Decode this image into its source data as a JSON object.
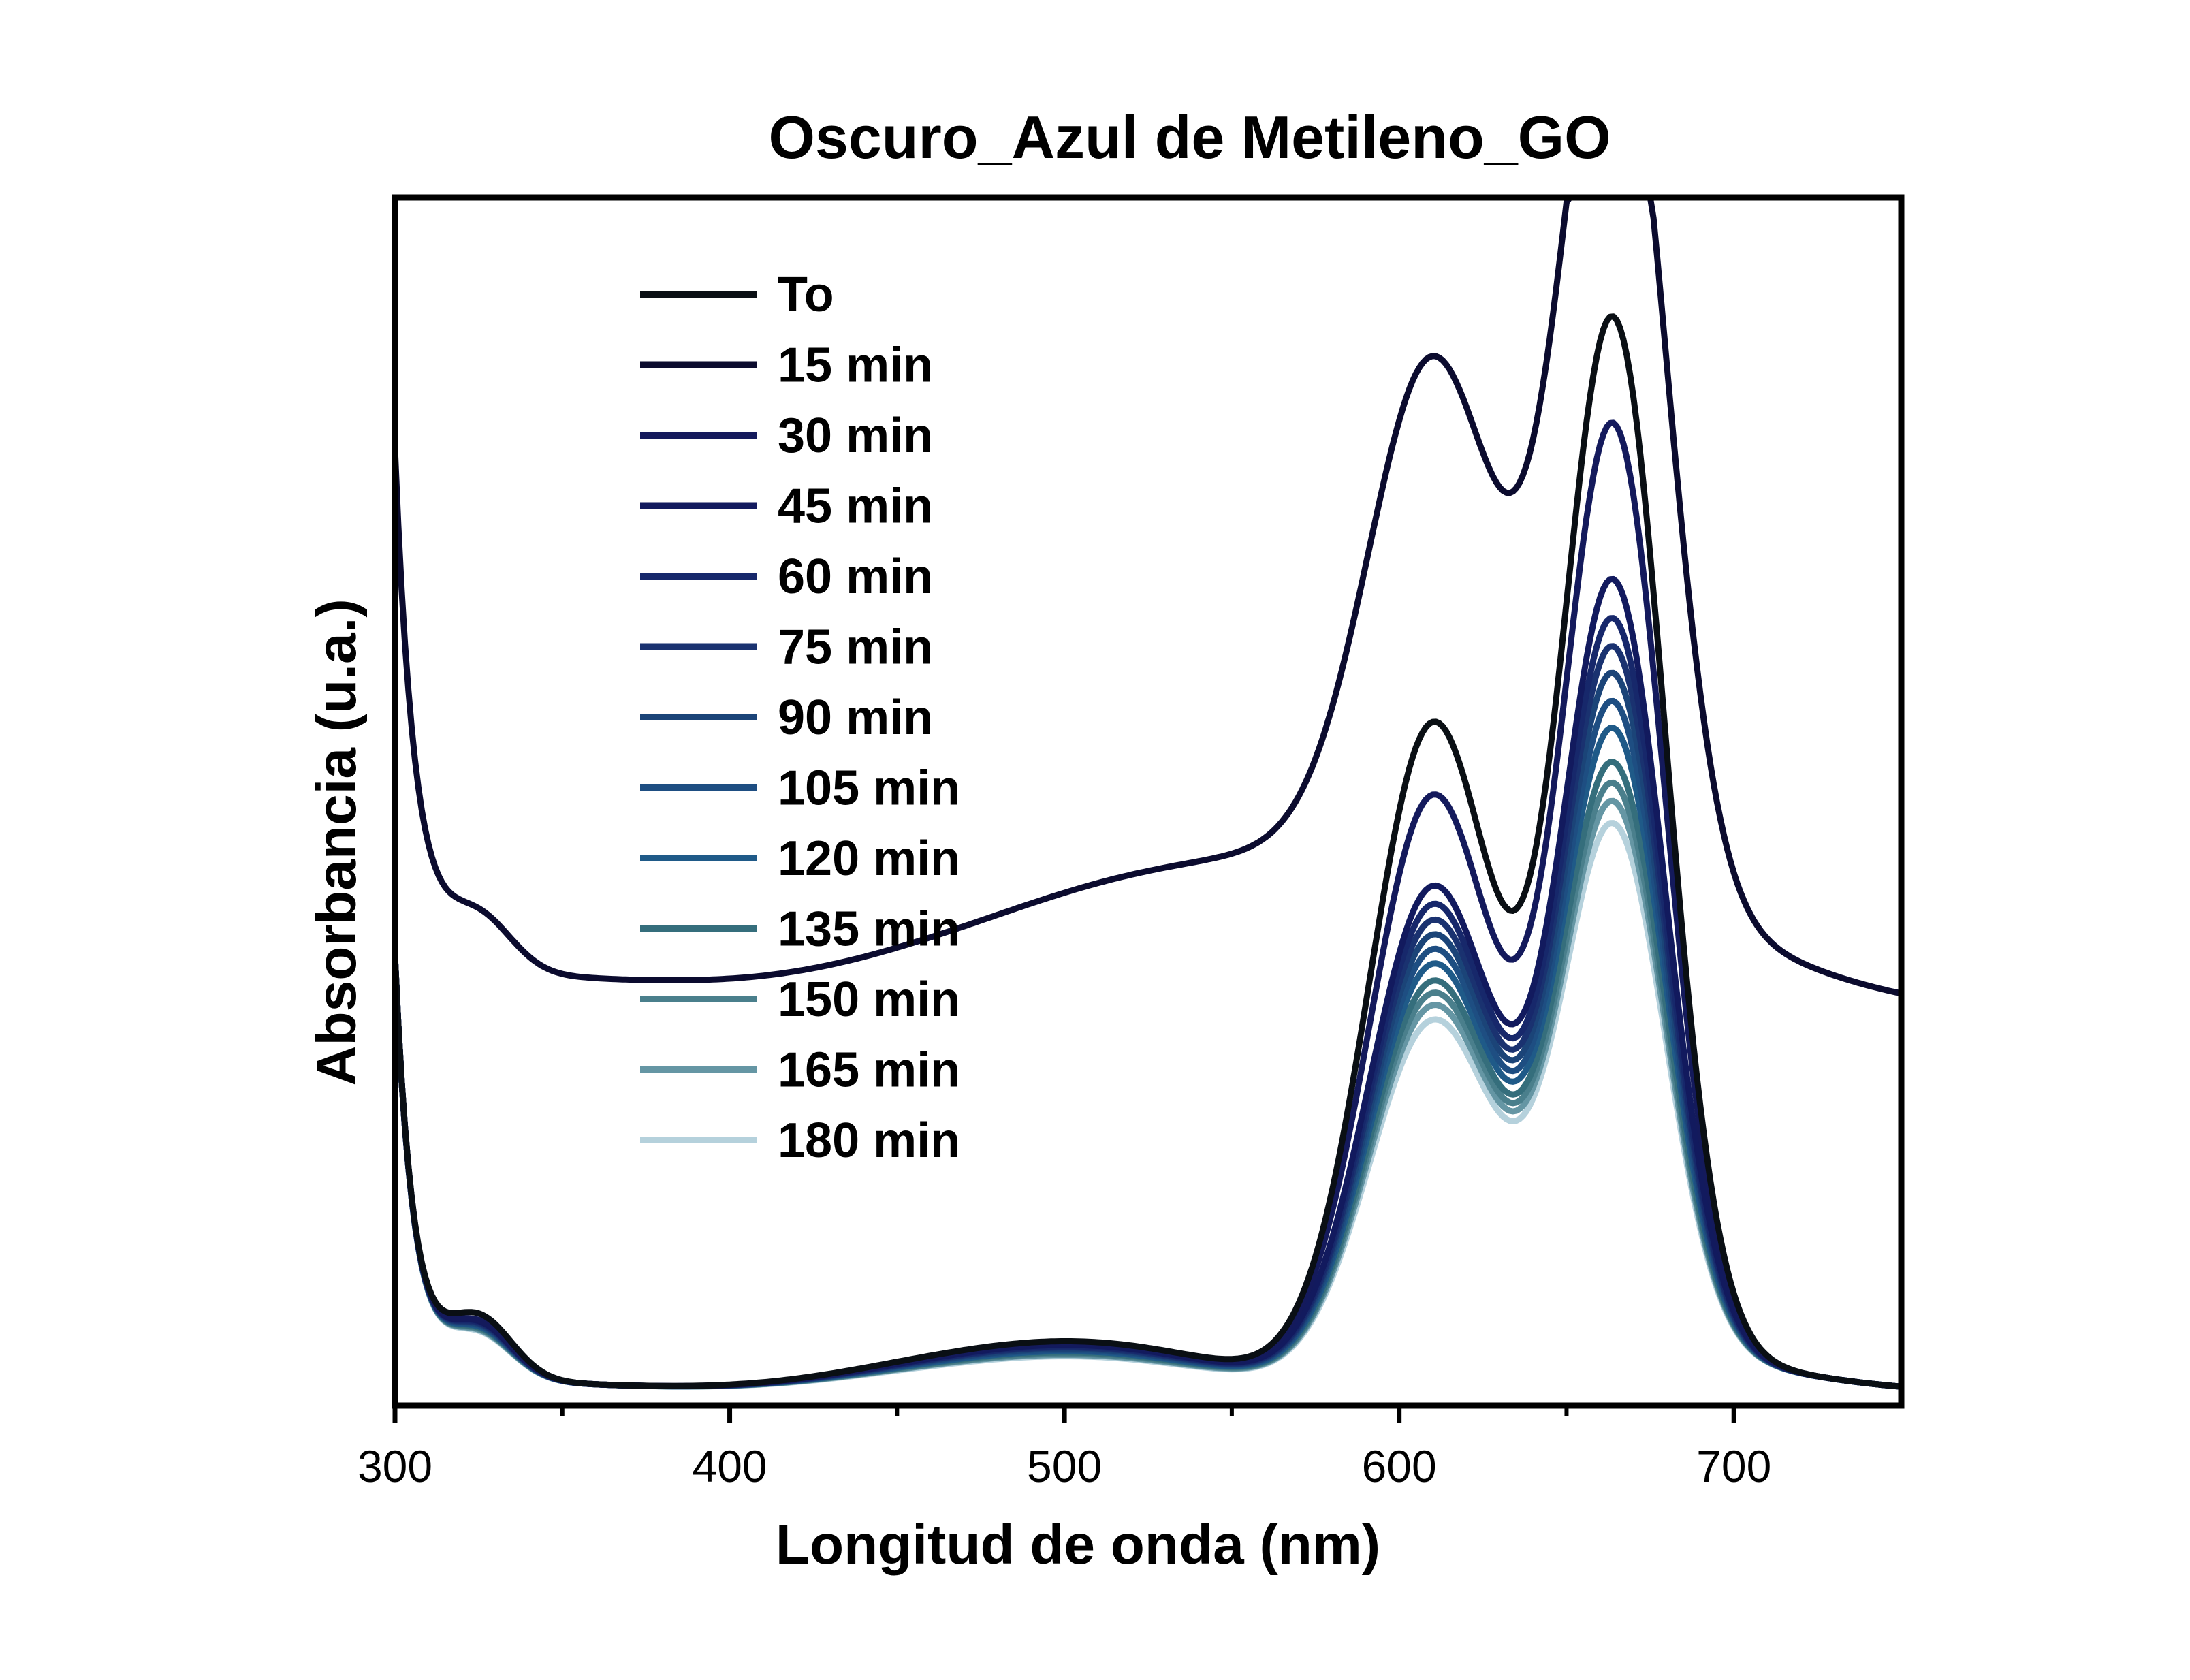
{
  "chart_data": {
    "type": "line",
    "title": "Oscuro_Azul de Metileno_GO",
    "xlabel": "Longitud de onda (nm)",
    "ylabel": "Absorbancia (u.a.)",
    "xlim": [
      300,
      750
    ],
    "ylim": [
      0,
      1
    ],
    "x_ticks": [
      {
        "value": 300,
        "label": "300"
      },
      {
        "value": 400,
        "label": "400"
      },
      {
        "value": 500,
        "label": "500"
      },
      {
        "value": 600,
        "label": "600"
      },
      {
        "value": 700,
        "label": "700"
      }
    ],
    "x_minor_ticks": [
      350,
      450,
      550,
      650
    ],
    "y_tick_labels": false,
    "grid": false,
    "legend_position": "top-left",
    "series": [
      {
        "name": "To",
        "color": "#0a0f14",
        "peak": 0.927,
        "shoulder": 0.535,
        "s330": 0.11,
        "s450": 0.024,
        "s500": 0.041
      },
      {
        "name": "15 min",
        "color": "#0b0b2e",
        "peak": 0.902,
        "shoulder": 0.435,
        "s330": 0.1,
        "s450": 0.023,
        "s500": 0.04,
        "offset": 0.34
      },
      {
        "name": "30 min",
        "color": "#141a5c",
        "peak": 0.84,
        "shoulder": 0.475,
        "s330": 0.098,
        "s450": 0.022,
        "s500": 0.04
      },
      {
        "name": "45 min",
        "color": "#121a5e",
        "peak": 0.712,
        "shoulder": 0.4,
        "s330": 0.096,
        "s450": 0.022,
        "s500": 0.038
      },
      {
        "name": "60 min",
        "color": "#17286b",
        "peak": 0.68,
        "shoulder": 0.385,
        "s330": 0.094,
        "s450": 0.021,
        "s500": 0.037
      },
      {
        "name": "75 min",
        "color": "#1a3270",
        "peak": 0.657,
        "shoulder": 0.372,
        "s330": 0.092,
        "s450": 0.021,
        "s500": 0.036
      },
      {
        "name": "90 min",
        "color": "#1b4478",
        "peak": 0.635,
        "shoulder": 0.36,
        "s330": 0.09,
        "s450": 0.02,
        "s500": 0.035
      },
      {
        "name": "105 min",
        "color": "#1e4e82",
        "peak": 0.612,
        "shoulder": 0.348,
        "s330": 0.088,
        "s450": 0.02,
        "s500": 0.034
      },
      {
        "name": "120 min",
        "color": "#1f5a88",
        "peak": 0.59,
        "shoulder": 0.336,
        "s330": 0.086,
        "s450": 0.019,
        "s500": 0.033
      },
      {
        "name": "135 min",
        "color": "#356e7c",
        "peak": 0.562,
        "shoulder": 0.322,
        "s330": 0.084,
        "s450": 0.019,
        "s500": 0.032
      },
      {
        "name": "150 min",
        "color": "#4a7f8c",
        "peak": 0.545,
        "shoulder": 0.312,
        "s330": 0.082,
        "s450": 0.018,
        "s500": 0.031
      },
      {
        "name": "165 min",
        "color": "#6596a4",
        "peak": 0.53,
        "shoulder": 0.302,
        "s330": 0.08,
        "s450": 0.018,
        "s500": 0.03
      },
      {
        "name": "180 min",
        "color": "#b5d1dc",
        "peak": 0.512,
        "shoulder": 0.29,
        "s330": 0.078,
        "s450": 0.017,
        "s500": 0.029
      }
    ]
  }
}
